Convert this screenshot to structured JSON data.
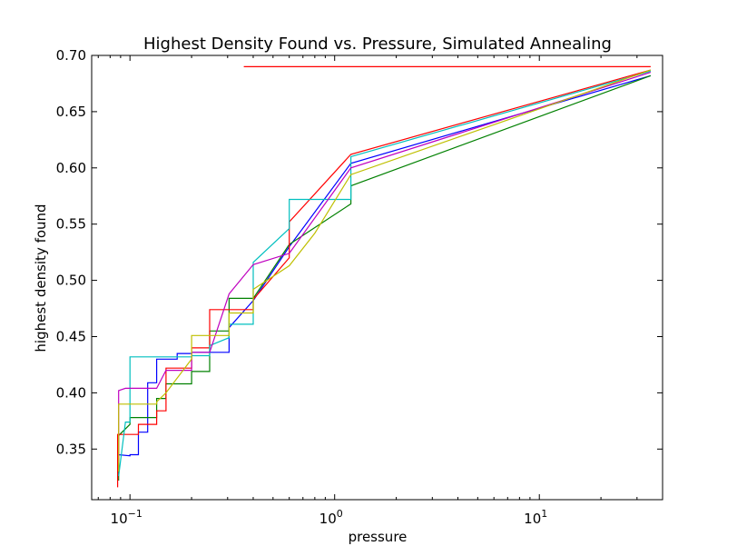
{
  "chart_data": {
    "type": "line",
    "title": "Highest Density Found vs. Pressure, Simulated Annealing",
    "xlabel": "pressure",
    "ylabel": "highest density found",
    "xscale": "log",
    "xlim": [
      0.065,
      40
    ],
    "ylim": [
      0.305,
      0.7
    ],
    "grid": false,
    "x_ticks": [
      {
        "value": 0.1,
        "base": "10",
        "exp": "−1"
      },
      {
        "value": 1,
        "base": "10",
        "exp": "0"
      },
      {
        "value": 10,
        "base": "10",
        "exp": "1"
      }
    ],
    "y_ticks": [
      {
        "value": 0.35,
        "label": "0.35"
      },
      {
        "value": 0.4,
        "label": "0.40"
      },
      {
        "value": 0.45,
        "label": "0.45"
      },
      {
        "value": 0.5,
        "label": "0.50"
      },
      {
        "value": 0.55,
        "label": "0.55"
      },
      {
        "value": 0.6,
        "label": "0.60"
      },
      {
        "value": 0.65,
        "label": "0.65"
      },
      {
        "value": 0.7,
        "label": "0.70"
      }
    ],
    "series": [
      {
        "color": "#0000ff",
        "x": [
          0.088,
          0.088,
          0.1,
          0.1,
          0.11,
          0.11,
          0.122,
          0.122,
          0.135,
          0.135,
          0.15,
          0.15,
          0.17,
          0.17,
          0.2,
          0.2,
          0.245,
          0.245,
          0.305,
          0.305,
          0.4,
          0.6,
          1.2,
          35
        ],
        "y": [
          0.33,
          0.345,
          0.344,
          0.345,
          0.345,
          0.365,
          0.365,
          0.409,
          0.409,
          0.43,
          0.43,
          0.43,
          0.43,
          0.435,
          0.435,
          0.436,
          0.436,
          0.436,
          0.436,
          0.458,
          0.482,
          0.53,
          0.604,
          0.682
        ]
      },
      {
        "color": "#008000",
        "x": [
          0.088,
          0.088,
          0.1,
          0.1,
          0.135,
          0.135,
          0.15,
          0.15,
          0.2,
          0.2,
          0.245,
          0.245,
          0.305,
          0.305,
          0.4,
          0.6,
          1.2,
          1.2,
          35
        ],
        "y": [
          0.322,
          0.362,
          0.372,
          0.378,
          0.378,
          0.395,
          0.395,
          0.408,
          0.408,
          0.419,
          0.419,
          0.455,
          0.455,
          0.484,
          0.484,
          0.532,
          0.568,
          0.584,
          0.682
        ]
      },
      {
        "color": "#ff0000",
        "x": [
          0.087,
          0.087,
          0.095,
          0.095,
          0.11,
          0.11,
          0.135,
          0.135,
          0.15,
          0.15,
          0.2,
          0.2,
          0.245,
          0.245,
          0.4,
          0.4,
          0.6,
          0.6,
          1.2,
          35
        ],
        "y": [
          0.316,
          0.363,
          0.363,
          0.363,
          0.363,
          0.372,
          0.372,
          0.384,
          0.384,
          0.422,
          0.422,
          0.44,
          0.44,
          0.474,
          0.474,
          0.483,
          0.52,
          0.552,
          0.612,
          0.687
        ]
      },
      {
        "color": "#00bfbf",
        "x": [
          0.088,
          0.095,
          0.1,
          0.1,
          0.2,
          0.2,
          0.245,
          0.245,
          0.305,
          0.305,
          0.4,
          0.4,
          0.6,
          0.6,
          1.2,
          1.2,
          35
        ],
        "y": [
          0.326,
          0.374,
          0.374,
          0.432,
          0.432,
          0.433,
          0.433,
          0.442,
          0.449,
          0.461,
          0.461,
          0.516,
          0.546,
          0.572,
          0.572,
          0.61,
          0.686
        ]
      },
      {
        "color": "#bf00bf",
        "x": [
          0.088,
          0.088,
          0.095,
          0.135,
          0.15,
          0.15,
          0.2,
          0.2,
          0.245,
          0.305,
          0.4,
          0.6,
          1.2,
          35
        ],
        "y": [
          0.338,
          0.402,
          0.404,
          0.404,
          0.42,
          0.42,
          0.42,
          0.436,
          0.436,
          0.488,
          0.514,
          0.524,
          0.6,
          0.685
        ]
      },
      {
        "color": "#bfbf00",
        "x": [
          0.088,
          0.088,
          0.135,
          0.135,
          0.15,
          0.2,
          0.2,
          0.305,
          0.305,
          0.4,
          0.4,
          0.6,
          0.8,
          1.2,
          35
        ],
        "y": [
          0.33,
          0.39,
          0.39,
          0.392,
          0.4,
          0.43,
          0.451,
          0.451,
          0.471,
          0.471,
          0.492,
          0.513,
          0.542,
          0.594,
          0.687
        ]
      },
      {
        "color": "#ff0000",
        "x": [
          0.36,
          35
        ],
        "y": [
          0.69,
          0.69
        ]
      }
    ]
  }
}
